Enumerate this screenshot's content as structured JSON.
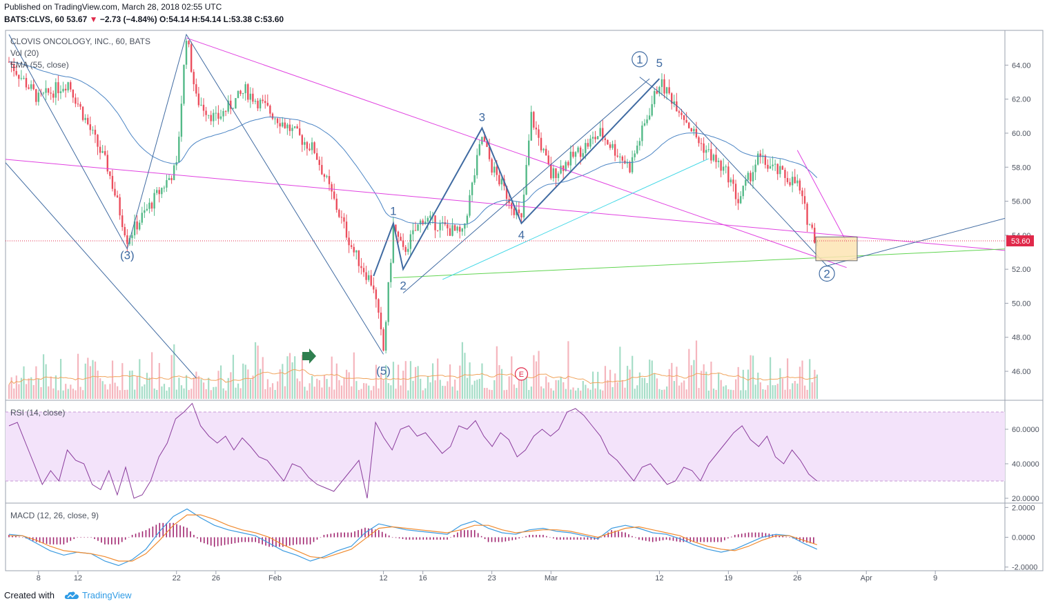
{
  "header": {
    "published": "Published on TradingView.com, March 28, 2018 02:55 UTC",
    "symbol_line": "BATS:CLVS, 60",
    "last": "53.67",
    "change": "−2.73 (−4.84%)",
    "ohlc": "O:54.14 H:54.14 L:53.38 C:53.60"
  },
  "footer": {
    "created_with": "Created with",
    "brand": "TradingView",
    "brand_icon": "cloud-logo-icon"
  },
  "chart_data": [
    {
      "type": "line",
      "title": "CLOVIS ONCOLOGY, INC., 60, BATS",
      "legend": [
        "Vol (20)",
        "EMA (55, close)"
      ],
      "ylim": [
        44.5,
        65.8
      ],
      "yticks": [
        "64.00",
        "62.00",
        "60.00",
        "58.00",
        "56.00",
        "54.00",
        "52.00",
        "50.00",
        "48.00",
        "46.00"
      ],
      "xticks": [
        "8",
        "12",
        "22",
        "26",
        "Feb",
        "12",
        "16",
        "23",
        "Mar",
        "12",
        "19",
        "26",
        "Apr",
        "9"
      ],
      "last_price_label": "53.60",
      "current_price": 53.67,
      "price_path": [
        {
          "date": "Jan 5",
          "price": 64.2
        },
        {
          "date": "Jan 8",
          "price": 62.0
        },
        {
          "date": "Jan 11",
          "price": 63.0
        },
        {
          "date": "Jan 15",
          "price": 58.0
        },
        {
          "date": "Jan 17",
          "price": 53.8
        },
        {
          "date": "Jan 19",
          "price": 55.5
        },
        {
          "date": "Jan 22",
          "price": 58.0
        },
        {
          "date": "Jan 23",
          "price": 65.8
        },
        {
          "date": "Jan 24",
          "price": 62.0
        },
        {
          "date": "Jan 26",
          "price": 60.8
        },
        {
          "date": "Jan 29",
          "price": 62.5
        },
        {
          "date": "Feb 1",
          "price": 61.0
        },
        {
          "date": "Feb 5",
          "price": 59.0
        },
        {
          "date": "Feb 7",
          "price": 56.0
        },
        {
          "date": "Feb 9",
          "price": 53.0
        },
        {
          "date": "Feb 11",
          "price": 51.0
        },
        {
          "date": "Feb 12",
          "price": 47.2
        },
        {
          "date": "Feb 13",
          "price": 54.5
        },
        {
          "date": "Feb 14",
          "price": 53.0
        },
        {
          "date": "Feb 16",
          "price": 55.0
        },
        {
          "date": "Feb 20",
          "price": 54.0
        },
        {
          "date": "Feb 22",
          "price": 59.8
        },
        {
          "date": "Feb 23",
          "price": 58.0
        },
        {
          "date": "Feb 26",
          "price": 54.8
        },
        {
          "date": "Feb 27",
          "price": 61.0
        },
        {
          "date": "Mar 1",
          "price": 57.5
        },
        {
          "date": "Mar 6",
          "price": 60.0
        },
        {
          "date": "Mar 9",
          "price": 58.0
        },
        {
          "date": "Mar 12",
          "price": 63.0
        },
        {
          "date": "Mar 14",
          "price": 61.5
        },
        {
          "date": "Mar 16",
          "price": 59.5
        },
        {
          "date": "Mar 19",
          "price": 57.5
        },
        {
          "date": "Mar 20",
          "price": 56.0
        },
        {
          "date": "Mar 22",
          "price": 58.5
        },
        {
          "date": "Mar 26",
          "price": 57.0
        },
        {
          "date": "Mar 27",
          "price": 55.0
        },
        {
          "date": "Mar 28",
          "price": 53.6
        }
      ],
      "annotations": [
        {
          "label": "(3)",
          "date": "Jan 17",
          "price": 52.6
        },
        {
          "label": "(5)",
          "date": "Feb 12",
          "price": 45.8
        },
        {
          "label": "1",
          "date": "Feb 13",
          "price": 55.2
        },
        {
          "label": "2",
          "date": "Feb 14",
          "price": 50.8
        },
        {
          "label": "3",
          "date": "Feb 22",
          "price": 60.7
        },
        {
          "label": "4",
          "date": "Feb 26",
          "price": 53.8
        },
        {
          "label": "5",
          "date": "Mar 12",
          "price": 63.9
        },
        {
          "label": "1",
          "date": "Mar 10",
          "price": 64.1,
          "circled": true
        },
        {
          "label": "2",
          "date": "Mar 29",
          "price": 51.5,
          "circled": true
        },
        {
          "label": "E",
          "date": "Feb 26",
          "price": 45.6,
          "circled": true,
          "note": "earnings"
        }
      ]
    },
    {
      "type": "line",
      "title": "RSI (14, close)",
      "ylim": [
        18,
        76
      ],
      "yticks": [
        "60.0000",
        "40.0000",
        "20.0000"
      ],
      "band": [
        30,
        70
      ],
      "values": [
        62,
        64,
        52,
        40,
        28,
        36,
        30,
        48,
        42,
        40,
        28,
        25,
        36,
        22,
        38,
        20,
        22,
        30,
        44,
        52,
        66,
        70,
        75,
        62,
        56,
        52,
        56,
        48,
        55,
        50,
        44,
        42,
        36,
        30,
        40,
        38,
        32,
        28,
        26,
        24,
        30,
        36,
        42,
        20,
        64,
        55,
        48,
        60,
        62,
        56,
        58,
        52,
        46,
        50,
        62,
        60,
        65,
        56,
        50,
        58,
        54,
        44,
        48,
        56,
        60,
        56,
        60,
        70,
        72,
        68,
        62,
        56,
        46,
        42,
        36,
        30,
        38,
        40,
        34,
        28,
        30,
        38,
        36,
        30,
        40,
        46,
        52,
        58,
        62,
        54,
        50,
        56,
        44,
        40,
        48,
        42,
        34,
        30
      ]
    },
    {
      "type": "line",
      "title": "MACD (12, 26, close, 9)",
      "ylim": [
        -2.2,
        2.2
      ],
      "yticks": [
        "2.0000",
        "0.0000",
        "-2.0000"
      ],
      "series": [
        {
          "values": [
            0.2,
            0.1,
            -0.4,
            -0.9,
            -1.2,
            -1.0,
            -1.1,
            -1.6,
            -1.9,
            -1.5,
            -0.8,
            0.4,
            1.4,
            1.9,
            1.3,
            0.8,
            0.5,
            0.3,
            0.1,
            -0.4,
            -0.9,
            -1.2,
            -1.6,
            -1.3,
            -0.9,
            -0.6,
            0.3,
            0.9,
            0.7,
            0.5,
            0.4,
            0.3,
            0.2,
            0.8,
            1.1,
            0.6,
            0.3,
            0.2,
            0.5,
            0.6,
            0.4,
            0.3,
            0.1,
            -0.1,
            0.6,
            0.8,
            0.6,
            0.3,
            0.2,
            -0.1,
            -0.5,
            -0.8,
            -1.0,
            -0.8,
            -0.4,
            0.0,
            0.2,
            0.1,
            -0.4,
            -0.8
          ]
        },
        {
          "values": [
            0.1,
            0.1,
            -0.2,
            -0.6,
            -0.9,
            -1.0,
            -1.1,
            -1.3,
            -1.6,
            -1.6,
            -1.1,
            -0.2,
            0.8,
            1.5,
            1.5,
            1.2,
            0.8,
            0.5,
            0.3,
            0.0,
            -0.5,
            -0.9,
            -1.3,
            -1.4,
            -1.1,
            -0.8,
            -0.1,
            0.6,
            0.7,
            0.6,
            0.5,
            0.4,
            0.3,
            0.5,
            0.8,
            0.8,
            0.5,
            0.3,
            0.4,
            0.5,
            0.5,
            0.4,
            0.2,
            0.0,
            0.3,
            0.6,
            0.7,
            0.5,
            0.3,
            0.1,
            -0.3,
            -0.6,
            -0.8,
            -0.9,
            -0.6,
            -0.2,
            0.1,
            0.1,
            -0.2,
            -0.5
          ]
        }
      ]
    }
  ]
}
